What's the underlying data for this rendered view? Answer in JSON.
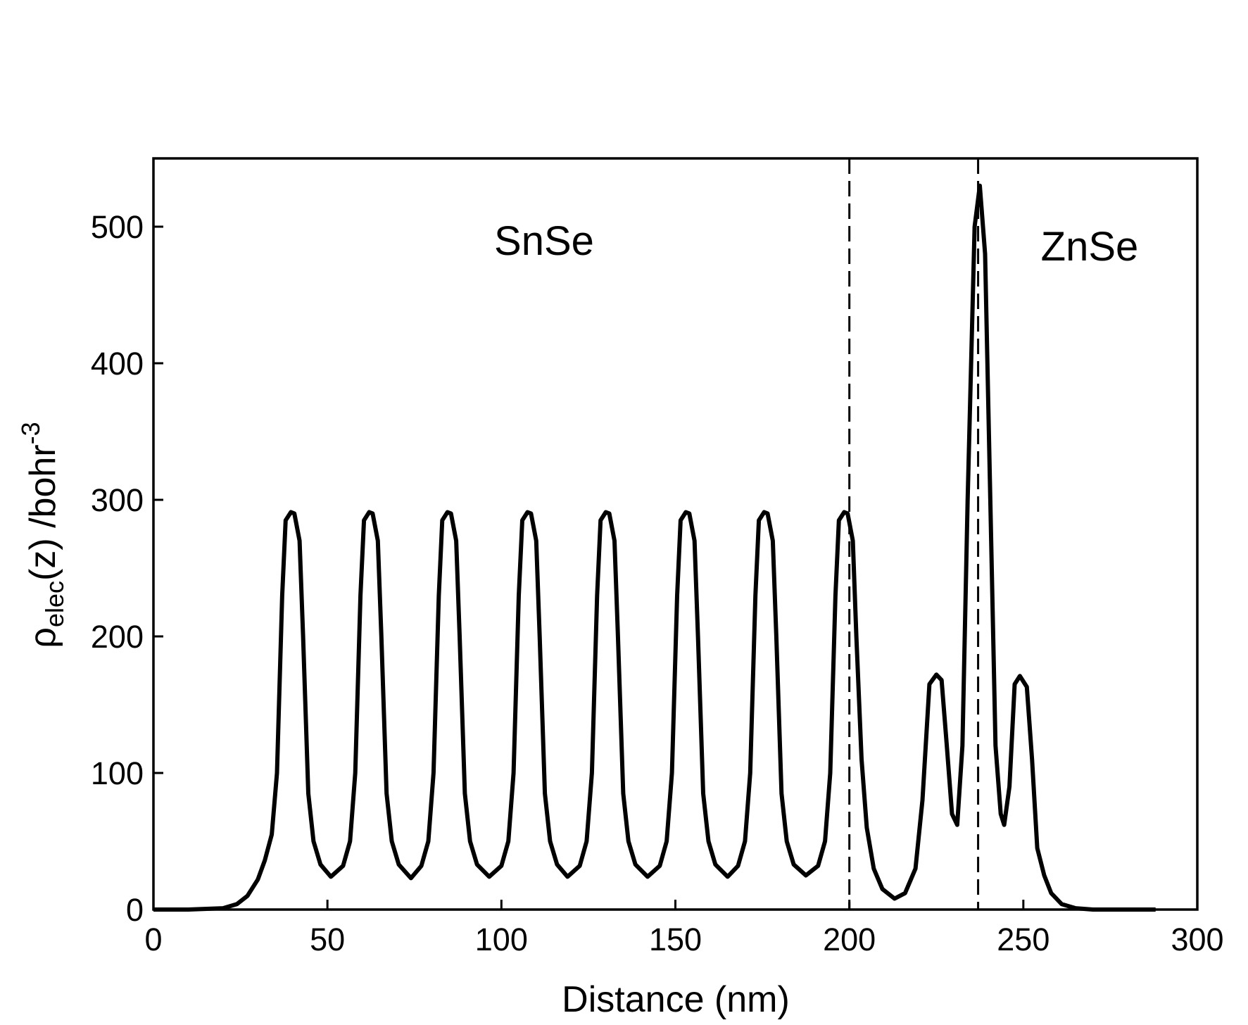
{
  "chart_data": {
    "type": "line",
    "xlabel": "Distance (nm)",
    "ylabel": {
      "base": "ρ",
      "sub": "elec",
      "main": "(z) /bohr",
      "sup": "-3"
    },
    "annotations": [
      "SnSe",
      "ZnSe"
    ],
    "dashed_lines": [
      200,
      237
    ],
    "xlim": [
      0,
      300
    ],
    "xticks": [
      0,
      50,
      100,
      150,
      200,
      250,
      300
    ],
    "ylim": [
      0,
      550
    ],
    "yticks": [
      0,
      100,
      200,
      300,
      400,
      500
    ],
    "grid": false,
    "series": [
      {
        "color": "#000000",
        "x": [
          0,
          10,
          20,
          24,
          27,
          30,
          32,
          34,
          35.5,
          37,
          38,
          39.5,
          40.5,
          42,
          43,
          44.5,
          46,
          48,
          51,
          54.5,
          56.5,
          58,
          59.5,
          60.5,
          62,
          63,
          64.5,
          65.5,
          67,
          68.5,
          70.5,
          74,
          77,
          79,
          80.5,
          82,
          83,
          84.5,
          85.5,
          87,
          88,
          89.5,
          91,
          93,
          96.5,
          100,
          102,
          103.5,
          105,
          106,
          107.5,
          108.5,
          110,
          111,
          112.5,
          114,
          116,
          119,
          122.5,
          124.5,
          126,
          127.5,
          128.5,
          130,
          131,
          132.5,
          133.5,
          135,
          136.5,
          138.5,
          142,
          145.5,
          147.5,
          149,
          150.5,
          151.5,
          153,
          154,
          155.5,
          156.5,
          158,
          159.5,
          161.5,
          165,
          168,
          170,
          171.5,
          173,
          174,
          175.5,
          176.5,
          178,
          179,
          180.5,
          182,
          184,
          187.5,
          191,
          193,
          194.5,
          196,
          197,
          198.5,
          199.5,
          201,
          202,
          203.5,
          205,
          207,
          209.5,
          213,
          216,
          219,
          221,
          223,
          225,
          226.5,
          228,
          229.5,
          231,
          232.5,
          234,
          236,
          237.5,
          239,
          240.5,
          242,
          243.5,
          244.5,
          246,
          247.5,
          249,
          251,
          252.5,
          254,
          256,
          258,
          261,
          265,
          270,
          288
        ],
        "values": [
          0,
          0,
          1,
          4,
          10,
          22,
          36,
          55,
          100,
          230,
          285,
          291,
          290,
          270,
          200,
          85,
          50,
          33,
          24,
          32,
          50,
          100,
          230,
          285,
          291,
          290,
          270,
          200,
          85,
          50,
          33,
          23,
          32,
          50,
          100,
          230,
          285,
          291,
          290,
          270,
          200,
          85,
          50,
          33,
          24,
          32,
          50,
          100,
          230,
          285,
          291,
          290,
          270,
          200,
          85,
          50,
          33,
          24,
          32,
          50,
          100,
          230,
          285,
          291,
          290,
          270,
          200,
          85,
          50,
          33,
          24,
          32,
          50,
          100,
          230,
          285,
          291,
          290,
          270,
          200,
          85,
          50,
          33,
          24,
          32,
          50,
          100,
          230,
          285,
          291,
          290,
          270,
          200,
          85,
          50,
          33,
          25,
          32,
          50,
          100,
          230,
          285,
          291,
          290,
          270,
          200,
          110,
          60,
          30,
          15,
          8,
          12,
          30,
          80,
          165,
          172,
          168,
          120,
          70,
          62,
          120,
          300,
          500,
          530,
          480,
          300,
          120,
          70,
          62,
          90,
          165,
          171,
          163,
          110,
          45,
          25,
          12,
          4,
          1,
          0,
          0
        ]
      }
    ]
  }
}
